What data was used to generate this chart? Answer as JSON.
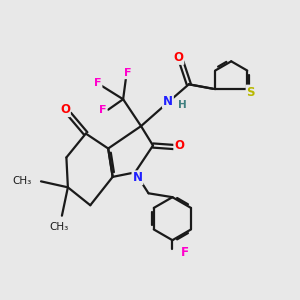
{
  "bg_color": "#e8e8e8",
  "bond_color": "#1a1a1a",
  "bond_width": 1.6,
  "atom_colors": {
    "O": "#ff0000",
    "N": "#2020ff",
    "F": "#ff00cc",
    "S": "#b8b800",
    "H": "#408080",
    "C": "#1a1a1a"
  },
  "figsize": [
    3.0,
    3.0
  ],
  "dpi": 100,
  "xlim": [
    0,
    10
  ],
  "ylim": [
    0,
    10
  ]
}
